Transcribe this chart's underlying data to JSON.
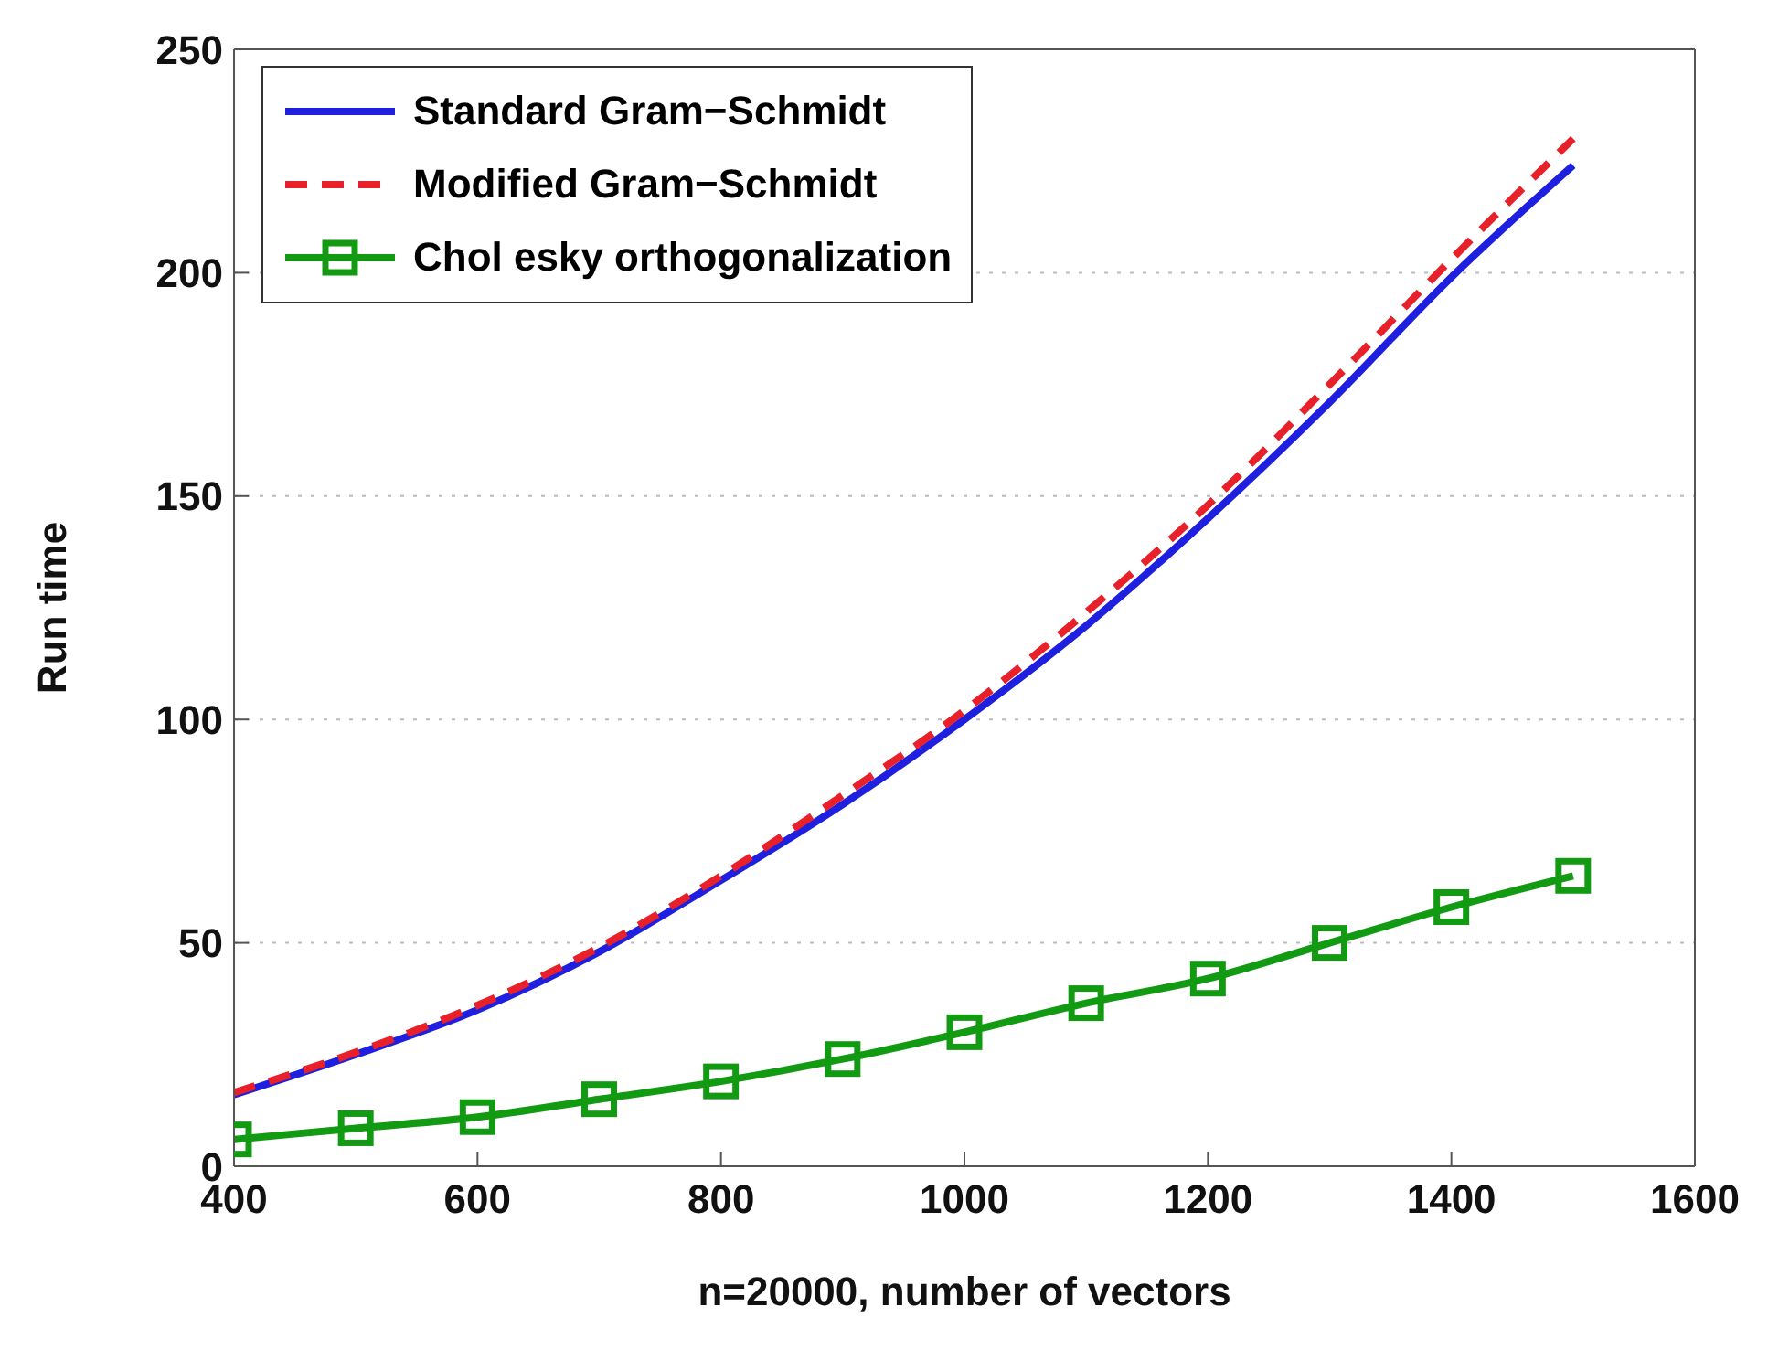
{
  "chart_data": {
    "type": "line",
    "xlabel": "n=20000, number of vectors",
    "ylabel": "Run time",
    "x": [
      400,
      500,
      600,
      700,
      800,
      900,
      1000,
      1100,
      1200,
      1300,
      1400,
      1500
    ],
    "series": [
      {
        "name": "Standard Gram−Schmidt",
        "color": "#1f1fe0",
        "line_style": "solid",
        "marker": "none",
        "values": [
          16,
          25,
          35,
          48,
          64,
          81,
          100,
          121,
          145,
          171,
          199,
          224
        ]
      },
      {
        "name": "Modified Gram−Schmidt",
        "color": "#e8202a",
        "line_style": "dashed",
        "marker": "none",
        "values": [
          16.5,
          25.5,
          36,
          49,
          65,
          83,
          102,
          124,
          148,
          175,
          203,
          230
        ]
      },
      {
        "name": "Chol esky orthogonalization",
        "color": "#139a13",
        "line_style": "solid",
        "marker": "square",
        "values": [
          6,
          8.5,
          11,
          15,
          19,
          24,
          30,
          36.5,
          42,
          50,
          58,
          65
        ]
      }
    ],
    "xlim": [
      400,
      1600
    ],
    "xticks": [
      400,
      600,
      800,
      1000,
      1200,
      1400,
      1600
    ],
    "ylim": [
      0,
      250
    ],
    "yticks": [
      0,
      50,
      100,
      150,
      200,
      250
    ],
    "grid": "y",
    "legend": "top left"
  }
}
